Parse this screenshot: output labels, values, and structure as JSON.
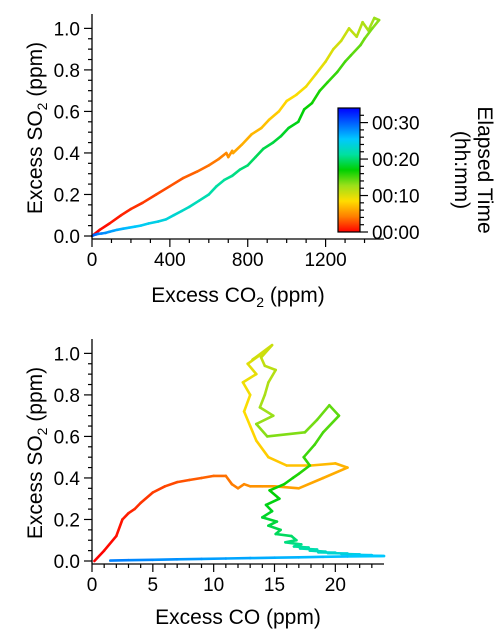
{
  "chart_data": [
    {
      "type": "line",
      "title": "",
      "xlabel_main": "Excess CO",
      "xlabel_sub": "2",
      "xlabel_unit": " (ppm)",
      "ylabel_main": "Excess SO",
      "ylabel_sub": "2",
      "ylabel_unit": " (ppm)",
      "xlim": [
        0,
        1500
      ],
      "ylim": [
        0,
        1.05
      ],
      "xticks": [
        0,
        400,
        800,
        1200
      ],
      "xtick_labels": [
        "0",
        "400",
        "800",
        "1200"
      ],
      "yticks": [
        0.0,
        0.2,
        0.4,
        0.6,
        0.8,
        1.0
      ],
      "ytick_labels": [
        "0.0",
        "0.2",
        "0.4",
        "0.6",
        "0.8",
        "1.0"
      ],
      "color_by": "elapsed_time",
      "series": [
        {
          "x": [
            0,
            40,
            90,
            150,
            200,
            260,
            330,
            400,
            470,
            540,
            600,
            650,
            690,
            700,
            720,
            725,
            770,
            820,
            870,
            910,
            960,
            1000,
            1050,
            1100,
            1150,
            1200,
            1240,
            1280,
            1320,
            1360,
            1390,
            1420,
            1450,
            1475,
            1440,
            1400,
            1380,
            1330,
            1300,
            1260,
            1210,
            1170,
            1130,
            1090,
            1060,
            1010,
            970,
            930,
            880,
            840,
            800,
            760,
            720,
            680,
            640,
            600,
            550,
            500,
            460,
            420,
            380,
            340,
            290,
            250,
            220,
            190,
            160,
            130,
            110,
            90,
            70,
            50,
            30,
            20,
            10,
            5,
            2
          ],
          "y": [
            0.0,
            0.03,
            0.06,
            0.1,
            0.13,
            0.16,
            0.2,
            0.24,
            0.28,
            0.31,
            0.34,
            0.37,
            0.4,
            0.38,
            0.41,
            0.4,
            0.44,
            0.49,
            0.52,
            0.56,
            0.6,
            0.65,
            0.68,
            0.72,
            0.78,
            0.84,
            0.9,
            0.94,
            1.0,
            0.96,
            1.03,
            0.99,
            1.05,
            1.04,
            1.0,
            0.95,
            0.92,
            0.87,
            0.84,
            0.79,
            0.74,
            0.7,
            0.64,
            0.61,
            0.55,
            0.52,
            0.48,
            0.45,
            0.42,
            0.38,
            0.34,
            0.32,
            0.29,
            0.27,
            0.24,
            0.2,
            0.17,
            0.14,
            0.12,
            0.1,
            0.08,
            0.07,
            0.06,
            0.05,
            0.045,
            0.04,
            0.035,
            0.03,
            0.025,
            0.02,
            0.015,
            0.012,
            0.01,
            0.007,
            0.005,
            0.003,
            0.001
          ],
          "t": [
            0,
            0.4,
            0.8,
            1.2,
            1.6,
            2.0,
            2.4,
            2.8,
            3.2,
            3.6,
            4.0,
            4.4,
            4.8,
            5.2,
            5.6,
            6.0,
            6.4,
            6.8,
            7.2,
            7.6,
            8.0,
            8.4,
            8.8,
            9.2,
            9.6,
            10.0,
            10.4,
            10.8,
            11.2,
            11.6,
            12.0,
            12.4,
            12.8,
            13.2,
            13.6,
            14.0,
            14.4,
            14.8,
            15.2,
            15.6,
            16.0,
            16.4,
            16.8,
            17.2,
            17.6,
            18.0,
            18.4,
            18.8,
            19.2,
            19.6,
            20.0,
            20.4,
            20.8,
            21.2,
            21.6,
            22.0,
            22.4,
            22.8,
            23.2,
            23.6,
            24.0,
            24.4,
            24.8,
            25.2,
            25.6,
            26.0,
            26.4,
            26.8,
            27.2,
            27.6,
            28.0,
            28.4,
            28.8,
            29.2,
            29.6,
            30.0,
            30.4
          ]
        }
      ],
      "colorbar": {
        "label_line1": "Elapsed Time",
        "label_line2": "(hh:mm)",
        "range_minutes": [
          0,
          34
        ],
        "ticks_minutes": [
          0,
          10,
          20,
          30
        ],
        "tick_labels": [
          "00:00",
          "00:10",
          "00:20",
          "00:30"
        ],
        "colors": [
          "#ff0000",
          "#ff7f00",
          "#ffdd00",
          "#9be01a",
          "#00d000",
          "#00e0a0",
          "#00c8ff",
          "#0064ff",
          "#0000ff"
        ]
      }
    },
    {
      "type": "line",
      "title": "",
      "xlabel_main": "Excess CO",
      "xlabel_sub": "",
      "xlabel_unit": " (ppm)",
      "ylabel_main": "Excess SO",
      "ylabel_sub": "2",
      "ylabel_unit": " (ppm)",
      "xlim": [
        0,
        24
      ],
      "ylim": [
        0,
        1.05
      ],
      "xticks": [
        0,
        5,
        10,
        15,
        20
      ],
      "xtick_labels": [
        "0",
        "5",
        "10",
        "15",
        "20"
      ],
      "yticks": [
        0.0,
        0.2,
        0.4,
        0.6,
        0.8,
        1.0
      ],
      "ytick_labels": [
        "0.0",
        "0.2",
        "0.4",
        "0.6",
        "0.8",
        "1.0"
      ],
      "color_by": "elapsed_time",
      "series": [
        {
          "x": [
            0.2,
            1,
            2,
            2.5,
            3,
            3.5,
            4,
            5,
            6,
            7,
            8,
            9,
            10,
            11,
            11.5,
            12,
            12.5,
            13,
            14,
            15,
            17,
            19,
            21,
            20,
            18,
            16,
            14.5,
            13.5,
            13,
            12.5,
            13,
            12.4,
            13.5,
            12.8,
            14,
            13.2,
            14.8,
            13.9,
            14.2,
            15.1,
            14.5,
            14.2,
            13.8,
            14.9,
            13.5,
            14.4,
            17.5,
            18.5,
            19.5,
            20.3,
            19,
            18.3,
            17.4,
            17.9,
            17,
            16.5,
            15.8,
            14.6,
            15.4,
            14.3,
            14.8,
            14,
            15.2,
            14.5,
            15.5,
            15.1,
            16.4,
            16.8,
            15.9,
            17.2,
            16.6,
            17.8,
            17.1,
            18.5,
            17.9,
            19.2,
            18.6,
            20,
            19.4,
            21,
            20.5,
            22,
            21.5,
            23,
            22.3,
            24,
            21,
            19,
            17,
            15,
            13,
            11,
            9,
            7,
            5,
            3,
            1.5
          ],
          "y": [
            0.0,
            0.05,
            0.12,
            0.2,
            0.23,
            0.25,
            0.28,
            0.33,
            0.36,
            0.38,
            0.39,
            0.4,
            0.41,
            0.41,
            0.37,
            0.35,
            0.37,
            0.36,
            0.36,
            0.36,
            0.35,
            0.4,
            0.45,
            0.47,
            0.46,
            0.46,
            0.5,
            0.58,
            0.65,
            0.72,
            0.8,
            0.86,
            0.9,
            0.95,
            1.0,
            0.97,
            1.04,
            0.98,
            0.94,
            0.92,
            0.86,
            0.8,
            0.74,
            0.7,
            0.66,
            0.6,
            0.62,
            0.68,
            0.75,
            0.7,
            0.62,
            0.56,
            0.5,
            0.46,
            0.42,
            0.4,
            0.37,
            0.34,
            0.3,
            0.27,
            0.24,
            0.21,
            0.19,
            0.17,
            0.15,
            0.13,
            0.12,
            0.1,
            0.09,
            0.08,
            0.07,
            0.065,
            0.06,
            0.055,
            0.05,
            0.045,
            0.042,
            0.04,
            0.038,
            0.036,
            0.034,
            0.032,
            0.03,
            0.028,
            0.026,
            0.024,
            0.022,
            0.02,
            0.018,
            0.016,
            0.014,
            0.012,
            0.01,
            0.008,
            0.006,
            0.004,
            0.002
          ],
          "t": [
            0,
            0.3,
            0.6,
            0.9,
            1.2,
            1.5,
            1.8,
            2.1,
            2.4,
            2.7,
            3.0,
            3.3,
            3.6,
            3.9,
            4.2,
            4.5,
            4.8,
            5.1,
            5.4,
            5.7,
            6.0,
            6.3,
            6.6,
            6.9,
            7.2,
            7.5,
            7.8,
            8.1,
            8.4,
            8.7,
            9.0,
            9.3,
            9.6,
            9.9,
            10.2,
            10.5,
            10.8,
            11.1,
            11.4,
            11.7,
            12.0,
            12.3,
            12.6,
            12.9,
            13.2,
            13.5,
            13.8,
            14.1,
            14.4,
            14.7,
            15.0,
            15.3,
            15.6,
            15.9,
            16.2,
            16.5,
            16.8,
            17.1,
            17.4,
            17.7,
            18.0,
            18.3,
            18.6,
            18.9,
            19.2,
            19.5,
            19.8,
            20.1,
            20.4,
            20.7,
            21.0,
            21.3,
            21.6,
            21.9,
            22.2,
            22.5,
            22.8,
            23.1,
            23.4,
            23.7,
            24.0,
            24.3,
            24.6,
            24.9,
            25.2,
            25.5,
            25.8,
            26.1,
            26.4,
            26.7,
            27.0,
            27.3,
            27.6,
            27.9,
            28.2,
            28.5,
            28.8
          ]
        }
      ]
    }
  ]
}
